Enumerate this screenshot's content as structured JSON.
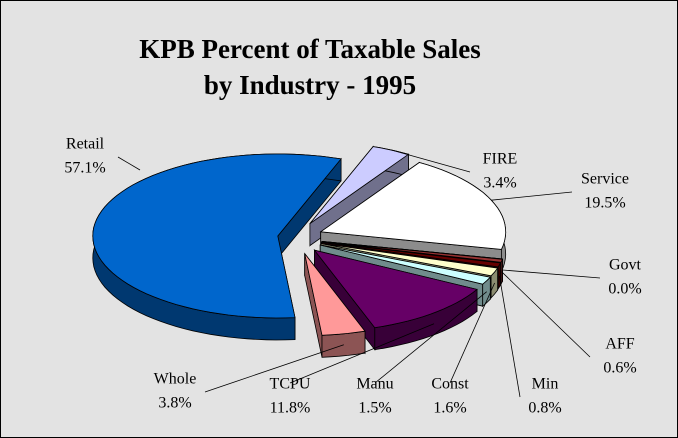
{
  "chart_data": {
    "type": "pie3d",
    "title": [
      "KPB Percent of Taxable Sales",
      "by Industry - 1995"
    ],
    "categories": [
      "Retail",
      "FIRE",
      "Service",
      "Govt",
      "AFF",
      "Min",
      "Const",
      "Manu",
      "TCPU",
      "Whole"
    ],
    "values": [
      57.1,
      3.4,
      19.5,
      0.0,
      0.6,
      0.8,
      1.6,
      1.5,
      11.8,
      3.8
    ],
    "value_labels": [
      "57.1%",
      "3.4%",
      "19.5%",
      "0.0%",
      "0.6%",
      "0.8%",
      "1.6%",
      "1.5%",
      "11.8%",
      "3.8%"
    ],
    "colors": [
      "#0066cc",
      "#ccccff",
      "#ffffff",
      "#333366",
      "#993333",
      "#660000",
      "#ffffcc",
      "#ccffff",
      "#660066",
      "#ff9999"
    ]
  }
}
